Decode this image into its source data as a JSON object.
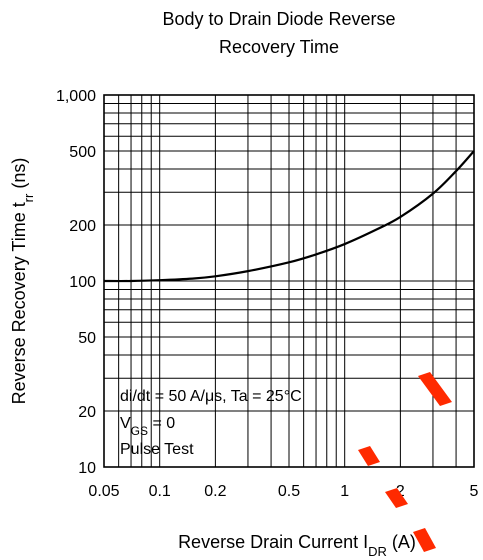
{
  "chart_data": {
    "type": "line",
    "title": [
      "Body to Drain Diode Reverse",
      "Recovery Time"
    ],
    "xlabel": {
      "main": "Reverse Drain Current  I",
      "sub": "DR",
      "unit": "  (A)"
    },
    "ylabel": {
      "main": "Reverse Recovery Time  t",
      "sub": "rr",
      "unit": "  (ns)"
    },
    "x_scale": "log",
    "y_scale": "log",
    "xlim": [
      0.05,
      5
    ],
    "ylim": [
      10,
      1000
    ],
    "x_ticks": [
      {
        "v": 0.05,
        "label": "0.05"
      },
      {
        "v": 0.1,
        "label": "0.1"
      },
      {
        "v": 0.2,
        "label": "0.2"
      },
      {
        "v": 0.5,
        "label": "0.5"
      },
      {
        "v": 1,
        "label": "1"
      },
      {
        "v": 2,
        "label": "2"
      },
      {
        "v": 5,
        "label": "5"
      }
    ],
    "y_ticks": [
      {
        "v": 10,
        "label": "10"
      },
      {
        "v": 20,
        "label": "20"
      },
      {
        "v": 50,
        "label": "50"
      },
      {
        "v": 100,
        "label": "100"
      },
      {
        "v": 200,
        "label": "200"
      },
      {
        "v": 500,
        "label": "500"
      },
      {
        "v": 1000,
        "label": "1,000"
      }
    ],
    "grid": true,
    "series": [
      {
        "x": [
          0.05,
          0.07,
          0.1,
          0.15,
          0.2,
          0.3,
          0.5,
          0.7,
          1,
          1.5,
          2,
          3,
          4,
          5
        ],
        "y": [
          100,
          100,
          101,
          103,
          106,
          113,
          126,
          139,
          158,
          190,
          221,
          295,
          390,
          500
        ]
      }
    ],
    "annotations": {
      "line1": "di/dt = 50 A/μs, Ta = 25°C",
      "line2": {
        "main": "V",
        "sub": "GS",
        "rest": " = 0"
      },
      "line3": "Pulse Test"
    }
  },
  "colors": {
    "ink": "#000000",
    "background": "#ffffff",
    "watermark": "#ff2a00"
  }
}
